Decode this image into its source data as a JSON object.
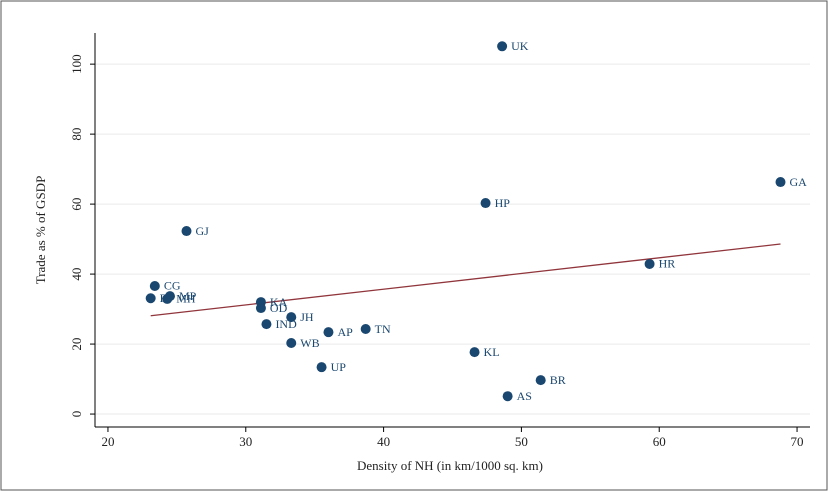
{
  "chart_data": {
    "type": "scatter",
    "xlabel": "Density of NH (in km/1000 sq. km)",
    "ylabel": "Trade as % of GSDP",
    "xlim": [
      19.06,
      70.94
    ],
    "ylim": [
      -3.7,
      108.9
    ],
    "xticks": [
      20,
      30,
      40,
      50,
      60,
      70
    ],
    "yticks": [
      0,
      20,
      40,
      60,
      80,
      100
    ],
    "grid": true,
    "series": [
      {
        "color": "#1a476f",
        "labels": [
          "UK",
          "GA",
          "HP",
          "GJ",
          "HR",
          "CG",
          "MP",
          "RJ",
          "MH",
          "KA",
          "OD",
          "JH",
          "IND",
          "AP",
          "TN",
          "WB",
          "KL",
          "UP",
          "BR",
          "AS"
        ],
        "x": [
          48.6,
          68.8,
          47.4,
          25.7,
          59.3,
          23.4,
          24.5,
          23.1,
          24.3,
          31.1,
          31.1,
          33.3,
          31.5,
          36.0,
          38.7,
          33.3,
          46.6,
          35.5,
          51.4,
          49.0
        ],
        "values": [
          105.1,
          66.3,
          60.3,
          52.3,
          42.9,
          36.6,
          33.7,
          33.1,
          32.9,
          32.0,
          30.3,
          27.7,
          25.7,
          23.4,
          24.3,
          20.3,
          17.7,
          13.4,
          9.7,
          5.1
        ]
      }
    ],
    "fit": {
      "color": "#90353b",
      "x": [
        23.1,
        68.8
      ],
      "values": [
        28.1,
        48.6
      ]
    }
  }
}
